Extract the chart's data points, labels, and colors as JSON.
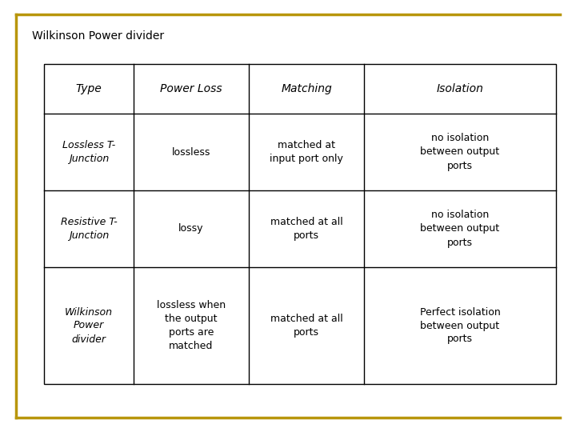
{
  "title": "Wilkinson Power divider",
  "title_fontsize": 10,
  "title_color": "#000000",
  "background_color": "#ffffff",
  "gold_color": "#b8960c",
  "table_border_color": "#000000",
  "header_row": [
    "Type",
    "Power Loss",
    "Matching",
    "Isolation"
  ],
  "rows": [
    [
      "Lossless T-\nJunction",
      "lossless",
      "matched at\ninput port only",
      "no isolation\nbetween output\nports"
    ],
    [
      "Resistive T-\nJunction",
      "lossy",
      "matched at all\nports",
      "no isolation\nbetween output\nports"
    ],
    [
      "Wilkinson\nPower\ndivider",
      "lossless when\nthe output\nports are\nmatched",
      "matched at all\nports",
      "Perfect isolation\nbetween output\nports"
    ]
  ],
  "font_size": 9,
  "header_font_size": 10
}
